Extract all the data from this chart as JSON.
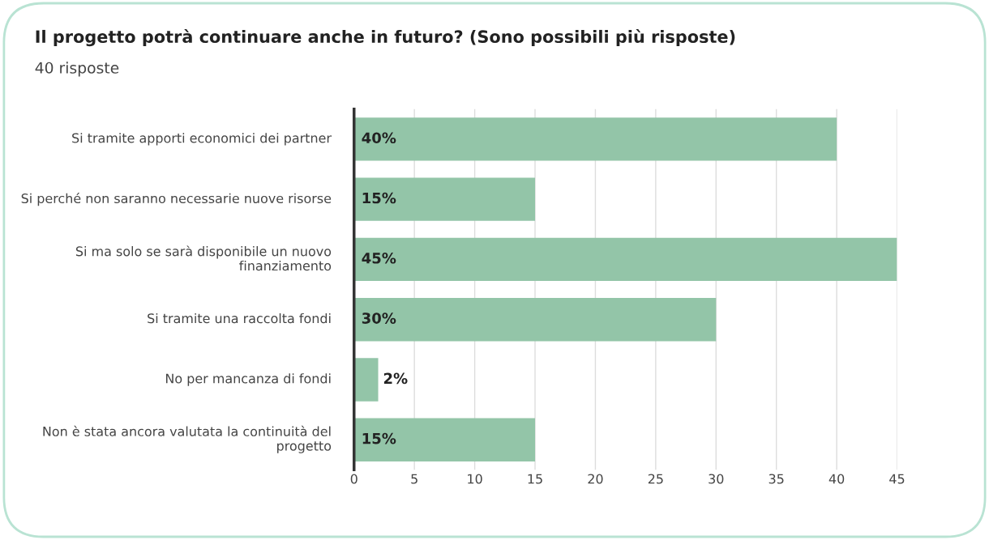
{
  "chart_data": {
    "type": "bar",
    "orientation": "horizontal",
    "title": "Il progetto potrà continuare anche in futuro? (Sono possibili più risposte)",
    "subtitle": "40 risposte",
    "categories": [
      "Si tramite apporti economici dei partner",
      "Si perché non saranno necessarie nuove risorse",
      "Si ma solo se sarà disponibile un nuovo finanziamento",
      "Si tramite una raccolta fondi",
      "No per mancanza di fondi",
      "Non è stata ancora valutata la continuità del progetto"
    ],
    "values": [
      40,
      15,
      45,
      30,
      2,
      15
    ],
    "value_labels": [
      "40%",
      "15%",
      "45%",
      "30%",
      "2%",
      "15%"
    ],
    "color": "#93c5a8",
    "xlim": [
      0,
      45
    ],
    "xticks": [
      0,
      5,
      10,
      15,
      20,
      25,
      30,
      35,
      40,
      45
    ],
    "grid": "x"
  }
}
